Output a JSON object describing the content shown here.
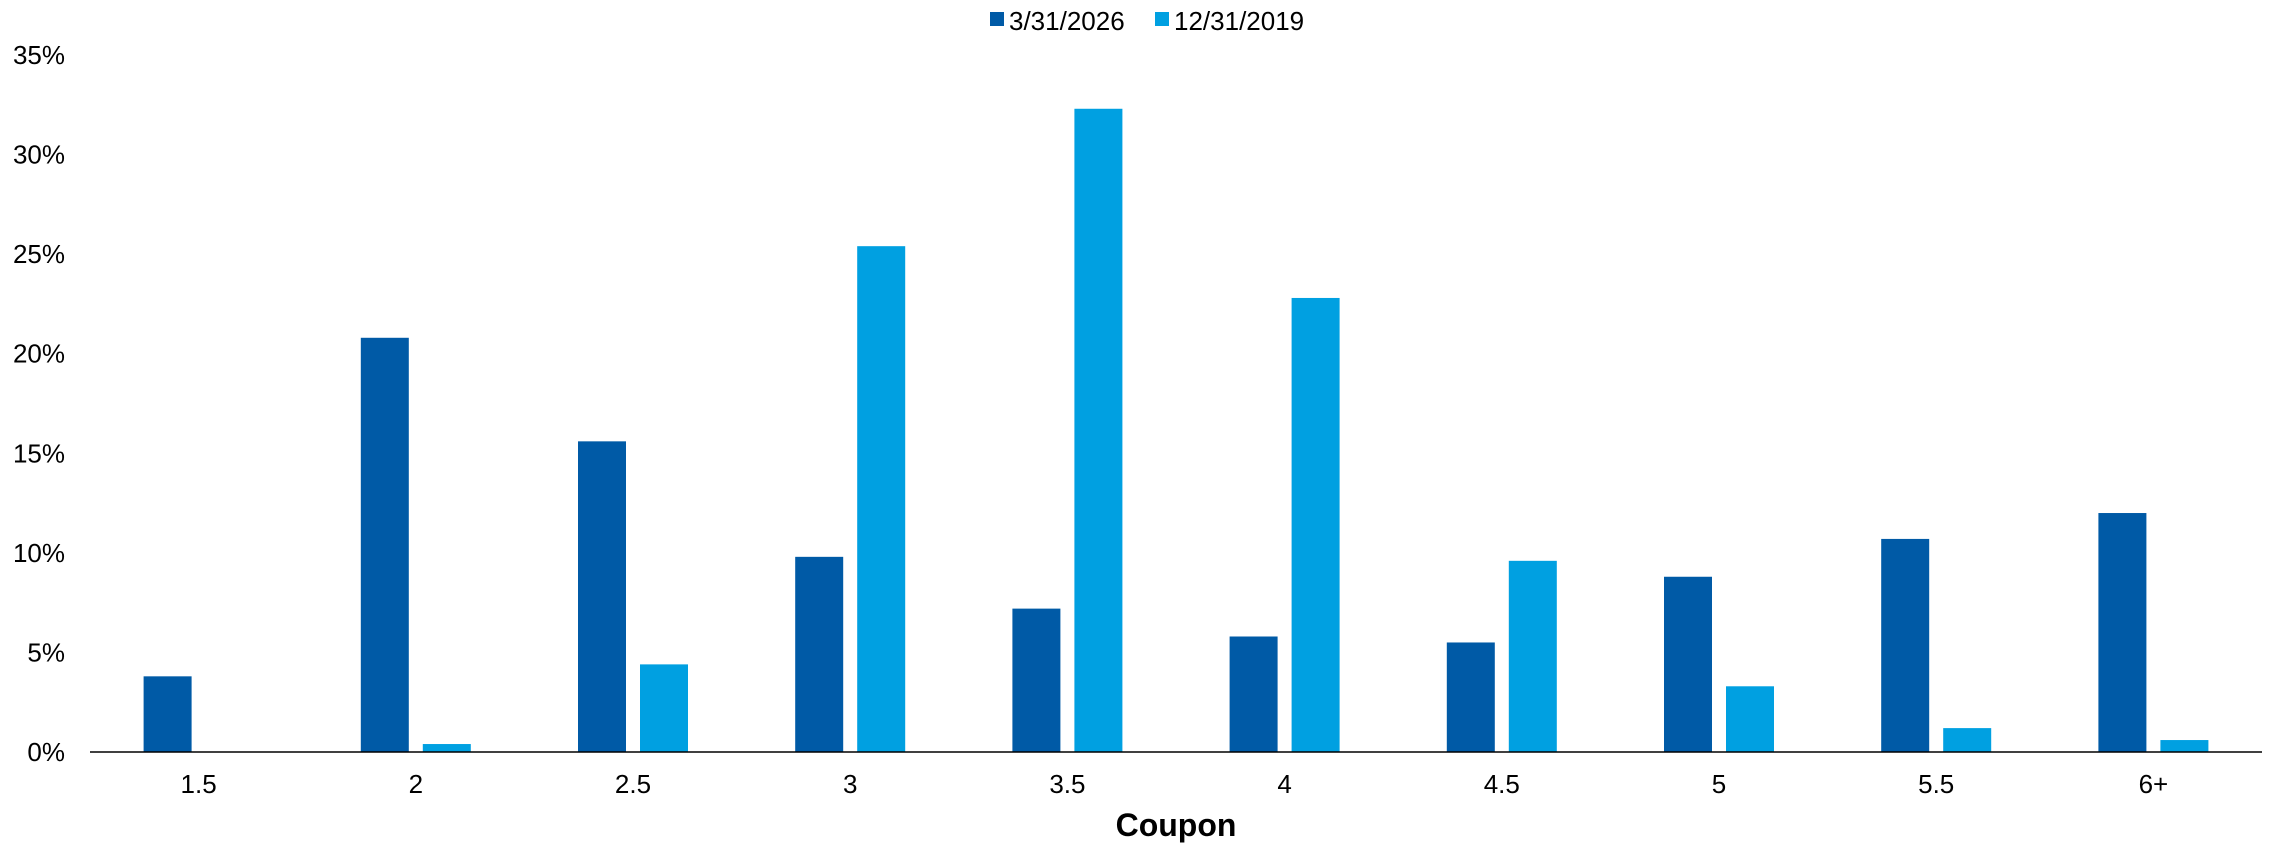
{
  "chart_data": {
    "type": "bar",
    "title": "",
    "xlabel": "Coupon",
    "ylabel": "",
    "categories": [
      "1.5",
      "2",
      "2.5",
      "3",
      "3.5",
      "4",
      "4.5",
      "5",
      "5.5",
      "6+"
    ],
    "series": [
      {
        "name": "3/31/2026",
        "color": "#005aa6",
        "values": [
          3.8,
          20.8,
          15.6,
          9.8,
          7.2,
          5.8,
          5.5,
          8.8,
          10.7,
          12.0
        ]
      },
      {
        "name": "12/31/2019",
        "color": "#00a0e1",
        "values": [
          0,
          0.4,
          4.4,
          25.4,
          32.3,
          22.8,
          9.6,
          3.3,
          1.2,
          0.6
        ]
      }
    ],
    "ylim": [
      0,
      35
    ],
    "yticks": [
      0,
      5,
      10,
      15,
      20,
      25,
      30,
      35
    ],
    "ytick_labels": [
      "0%",
      "5%",
      "10%",
      "15%",
      "20%",
      "25%",
      "30%",
      "35%"
    ],
    "grid": false,
    "legend_position": "top-center"
  }
}
